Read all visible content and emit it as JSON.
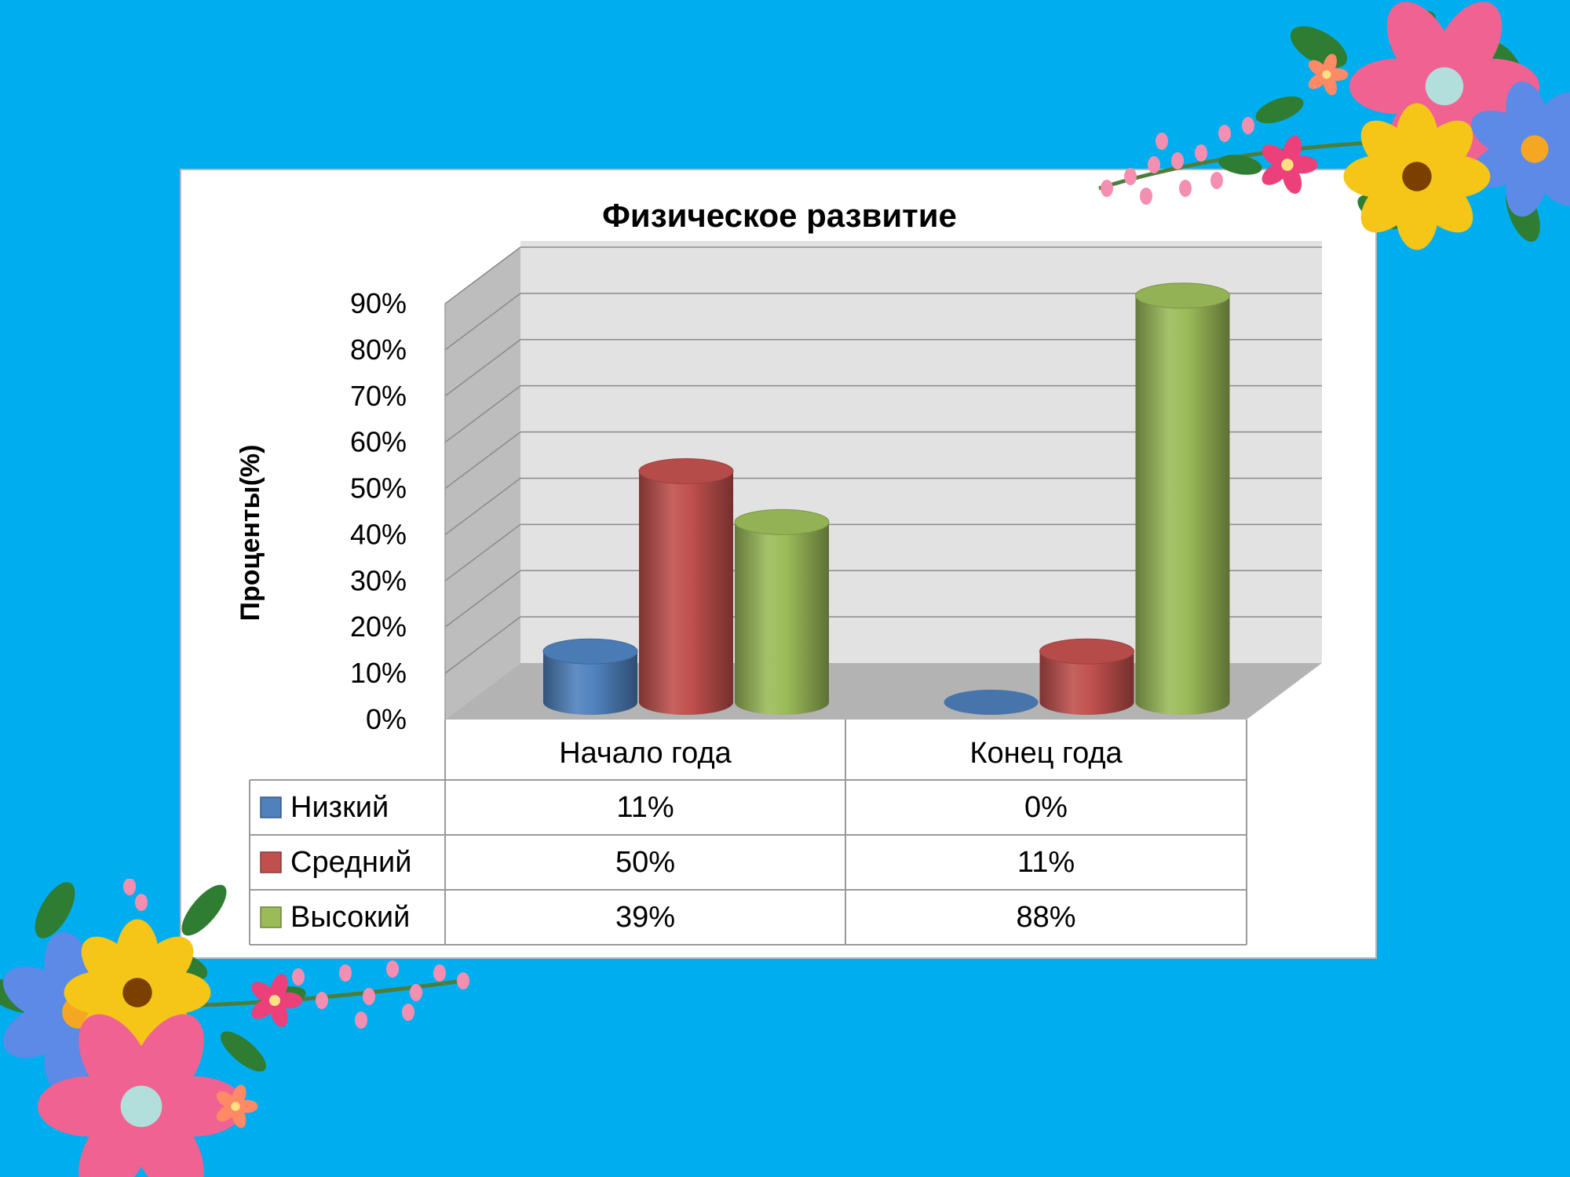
{
  "slide": {
    "background_color": "#00aeef",
    "decorations": [
      "flower-corner-top-right",
      "flower-corner-bottom-left"
    ]
  },
  "chart_data": {
    "type": "bar",
    "style": "3d-cylinder",
    "title": "Физическое развитие",
    "ylabel": "Проценты(%)",
    "xlabel": "",
    "ylim": [
      0,
      0.9
    ],
    "yticks": [
      "0%",
      "10%",
      "20%",
      "30%",
      "40%",
      "50%",
      "60%",
      "70%",
      "80%",
      "90%"
    ],
    "categories": [
      "Начало года",
      "Конец года"
    ],
    "series": [
      {
        "name": "Низкий",
        "values": [
          0.11,
          0.0
        ],
        "labels": [
          "11%",
          "0%"
        ],
        "color": "#4f81bd"
      },
      {
        "name": "Средний",
        "values": [
          0.5,
          0.11
        ],
        "labels": [
          "50%",
          "11%"
        ],
        "color": "#c0504d"
      },
      {
        "name": "Высокий",
        "values": [
          0.39,
          0.88
        ],
        "labels": [
          "39%",
          "88%"
        ],
        "color": "#9bbb59"
      }
    ],
    "grid": true,
    "legend": "data-table-below"
  }
}
